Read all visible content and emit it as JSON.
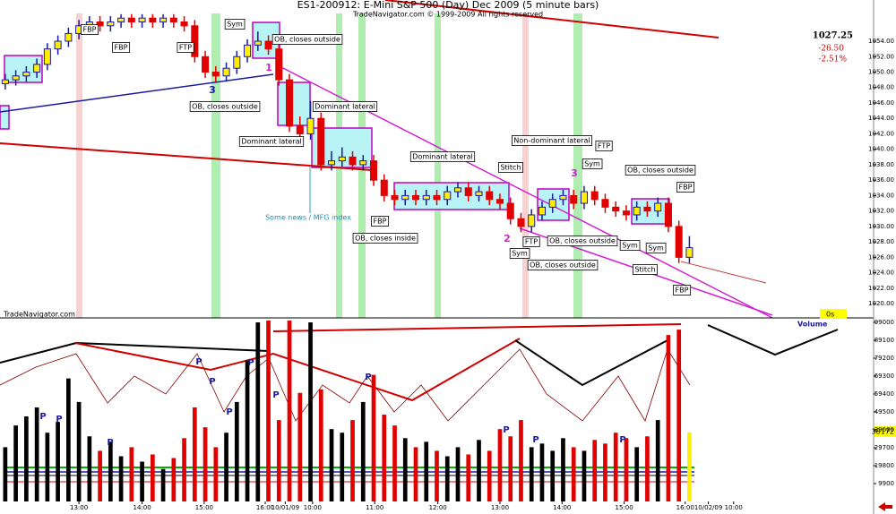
{
  "chart_data": [
    {
      "type": "candlestick",
      "title": "ES1-200912:  E-Mini S&P 500 (Day) Dec 2009  (5 minute bars)",
      "subtitle": "TradeNavigator.com © 1999-2009 All rights reserved",
      "source_label": "TradeNavigator.com",
      "change_label": "-26.50",
      "change_pct_label": "-2.51%",
      "up_color": "#ffee00",
      "up_edge": "#1a1aa0",
      "down_color": "#e00000",
      "xlim": [
        -0.5,
        82.5
      ],
      "ylim": [
        1018.5,
        1057.6
      ],
      "yticks": [
        {
          "value": 1020,
          "label": "1020.00"
        },
        {
          "value": 1022,
          "label": "1022.00"
        },
        {
          "value": 1024,
          "label": "1024.00"
        },
        {
          "value": 1026,
          "label": "1026.00"
        },
        {
          "value": 1028,
          "label": "1028.00"
        },
        {
          "value": 1030,
          "label": "1030.00"
        },
        {
          "value": 1032,
          "label": "1032.00"
        },
        {
          "value": 1034,
          "label": "1034.00"
        },
        {
          "value": 1036,
          "label": "1036.00"
        },
        {
          "value": 1038,
          "label": "1038.00"
        },
        {
          "value": 1040,
          "label": "1040.00"
        },
        {
          "value": 1042,
          "label": "1042.00"
        },
        {
          "value": 1044,
          "label": "1044.00"
        },
        {
          "value": 1046,
          "label": "1046.00"
        },
        {
          "value": 1048,
          "label": "1048.00"
        },
        {
          "value": 1050,
          "label": "1050.00"
        },
        {
          "value": 1052,
          "label": "1052.00"
        },
        {
          "value": 1054,
          "label": "1054.00"
        }
      ],
      "open": [
        1048.5,
        1049,
        1049.5,
        1050,
        1051,
        1053,
        1054,
        1055,
        1056,
        1056.5,
        1056,
        1056.5,
        1057,
        1056.5,
        1057,
        1056.5,
        1057,
        1056.5,
        1056,
        1052,
        1050,
        1049.5,
        1050.5,
        1052,
        1053.5,
        1054,
        1053,
        1049,
        1043,
        1042,
        1044,
        1038,
        1038.5,
        1039,
        1038,
        1038.5,
        1036,
        1034,
        1033.5,
        1034,
        1033.5,
        1034,
        1033.5,
        1034.5,
        1035,
        1034,
        1034.5,
        1033.5,
        1033,
        1031,
        1030,
        1031.5,
        1032.5,
        1033.5,
        1034,
        1033,
        1034.5,
        1033.5,
        1032.5,
        1032,
        1031.5,
        1032.5,
        1032,
        1033,
        1030,
        1026
      ],
      "high": [
        1049.75,
        1050.25,
        1050.75,
        1051.75,
        1053.75,
        1054.75,
        1055.75,
        1056.75,
        1057.25,
        1057.25,
        1057.25,
        1057.5,
        1057.5,
        1057.5,
        1057.5,
        1057.5,
        1057.5,
        1057.25,
        1056.75,
        1052.75,
        1050.75,
        1051.25,
        1052.75,
        1054.25,
        1055.25,
        1054.75,
        1053.75,
        1049.75,
        1044.25,
        1046.25,
        1044.75,
        1039.75,
        1040.25,
        1039.75,
        1039.25,
        1039.25,
        1036.75,
        1034.75,
        1034.75,
        1034.75,
        1034.75,
        1034.75,
        1035.25,
        1035.75,
        1035.75,
        1035.25,
        1035.25,
        1034.25,
        1033.75,
        1031.75,
        1032.25,
        1033.25,
        1034.25,
        1034.75,
        1034.75,
        1035.25,
        1035.25,
        1034.25,
        1033.25,
        1032.75,
        1033.25,
        1033.25,
        1033.75,
        1033.75,
        1030.75,
        1028.75
      ],
      "low": [
        1047.75,
        1048.25,
        1048.75,
        1049.25,
        1050.25,
        1052.25,
        1053.25,
        1054.25,
        1055.25,
        1055.25,
        1055.25,
        1055.75,
        1055.75,
        1055.75,
        1055.75,
        1055.75,
        1055.75,
        1055.25,
        1051.25,
        1049.25,
        1048.75,
        1048.75,
        1049.75,
        1051.25,
        1052.75,
        1052.25,
        1048.25,
        1042.25,
        1041.25,
        1041.25,
        1037.25,
        1037.25,
        1037.75,
        1037.25,
        1037.25,
        1035.25,
        1033.25,
        1032.75,
        1032.75,
        1032.75,
        1032.75,
        1032.75,
        1032.75,
        1033.75,
        1033.25,
        1033.25,
        1032.75,
        1032.25,
        1030.25,
        1029.25,
        1029.25,
        1030.75,
        1031.75,
        1032.75,
        1032.25,
        1032.25,
        1032.75,
        1031.75,
        1031.25,
        1030.75,
        1030.75,
        1031.25,
        1031.25,
        1029.25,
        1025.25,
        1025.25
      ],
      "close": [
        1049,
        1049.5,
        1050,
        1051,
        1053,
        1054,
        1055,
        1056,
        1056.5,
        1056,
        1056.5,
        1057,
        1056.5,
        1057,
        1056.5,
        1057,
        1056.5,
        1056,
        1052,
        1050,
        1049.5,
        1050.5,
        1052,
        1053.5,
        1054,
        1053,
        1049,
        1043,
        1042,
        1044,
        1038,
        1038.5,
        1039,
        1038,
        1038.5,
        1036,
        1034,
        1033.5,
        1034,
        1033.5,
        1034,
        1033.5,
        1034.5,
        1035,
        1034,
        1034.5,
        1033.5,
        1033,
        1031,
        1030,
        1031.5,
        1032.5,
        1033.5,
        1034,
        1033,
        1034.5,
        1033.5,
        1032.5,
        1032,
        1031.5,
        1032.5,
        1032,
        1033,
        1030,
        1026,
        1027.25
      ],
      "annotations": [
        "FBP",
        "FBP",
        "FTP",
        "Sym",
        "OB, closes outside",
        "OB, closes outside",
        "Dominant lateral",
        "Dominant lateral",
        "Some news / MFG index",
        "FBP",
        "OB, closes inside",
        "Dominant lateral",
        "Stitch",
        "Non-dominant lateral",
        "FTP",
        "Sym",
        "OB, closes outside",
        "FBP",
        "FTP",
        "Sym",
        "OB, closes outside",
        "OB, closes outside",
        "Sym",
        "Sym",
        "Stitch",
        "FBP",
        "1",
        "3",
        "2",
        "3"
      ]
    },
    {
      "type": "bar",
      "title": "Volume",
      "timer_label": "0s",
      "up_color": "#000000",
      "down_color": "#e00000",
      "last_color": "#ffee00",
      "xlim": [
        -0.5,
        82.5
      ],
      "ylim": [
        0,
        100485
      ],
      "yticks": [
        9900,
        19800,
        29700,
        39600,
        49500,
        59400,
        69300,
        79200,
        89100,
        99000
      ],
      "xticks": [
        {
          "value": 7,
          "label": "13:00"
        },
        {
          "value": 13,
          "label": "14:00"
        },
        {
          "value": 18.9,
          "label": "15:00"
        },
        {
          "value": 24.7,
          "label": "16:00"
        },
        {
          "value": 26.6,
          "label": "10/01/09"
        },
        {
          "value": 29.2,
          "label": "10:00"
        },
        {
          "value": 35.1,
          "label": "11:00"
        },
        {
          "value": 41.1,
          "label": "12:00"
        },
        {
          "value": 47,
          "label": "13:00"
        },
        {
          "value": 52.9,
          "label": "14:00"
        },
        {
          "value": 58.8,
          "label": "15:00"
        },
        {
          "value": 64.6,
          "label": "16:00"
        },
        {
          "value": 66.8,
          "label": "10/02/09"
        },
        {
          "value": 69.2,
          "label": "10:00"
        }
      ],
      "values": [
        30000,
        42000,
        47000,
        52000,
        38000,
        44000,
        68000,
        55000,
        36000,
        28000,
        33000,
        25000,
        30000,
        22000,
        26000,
        18000,
        24000,
        35000,
        52000,
        41000,
        30000,
        38000,
        55000,
        78000,
        99000,
        100000,
        45000,
        100000,
        60000,
        99000,
        62000,
        40000,
        38000,
        45000,
        55000,
        70000,
        48000,
        42000,
        35000,
        30000,
        33000,
        28000,
        25000,
        30000,
        26000,
        34000,
        28000,
        40000,
        36000,
        45000,
        30000,
        32000,
        28000,
        35000,
        30000,
        28000,
        34000,
        32000,
        38000,
        35000,
        30000,
        36000,
        45000,
        92000,
        95000,
        38172
      ],
      "markers": [
        "P",
        "P",
        "P",
        "P",
        "P",
        "P",
        "P",
        "P",
        "P",
        "P",
        "P",
        "P"
      ]
    }
  ]
}
